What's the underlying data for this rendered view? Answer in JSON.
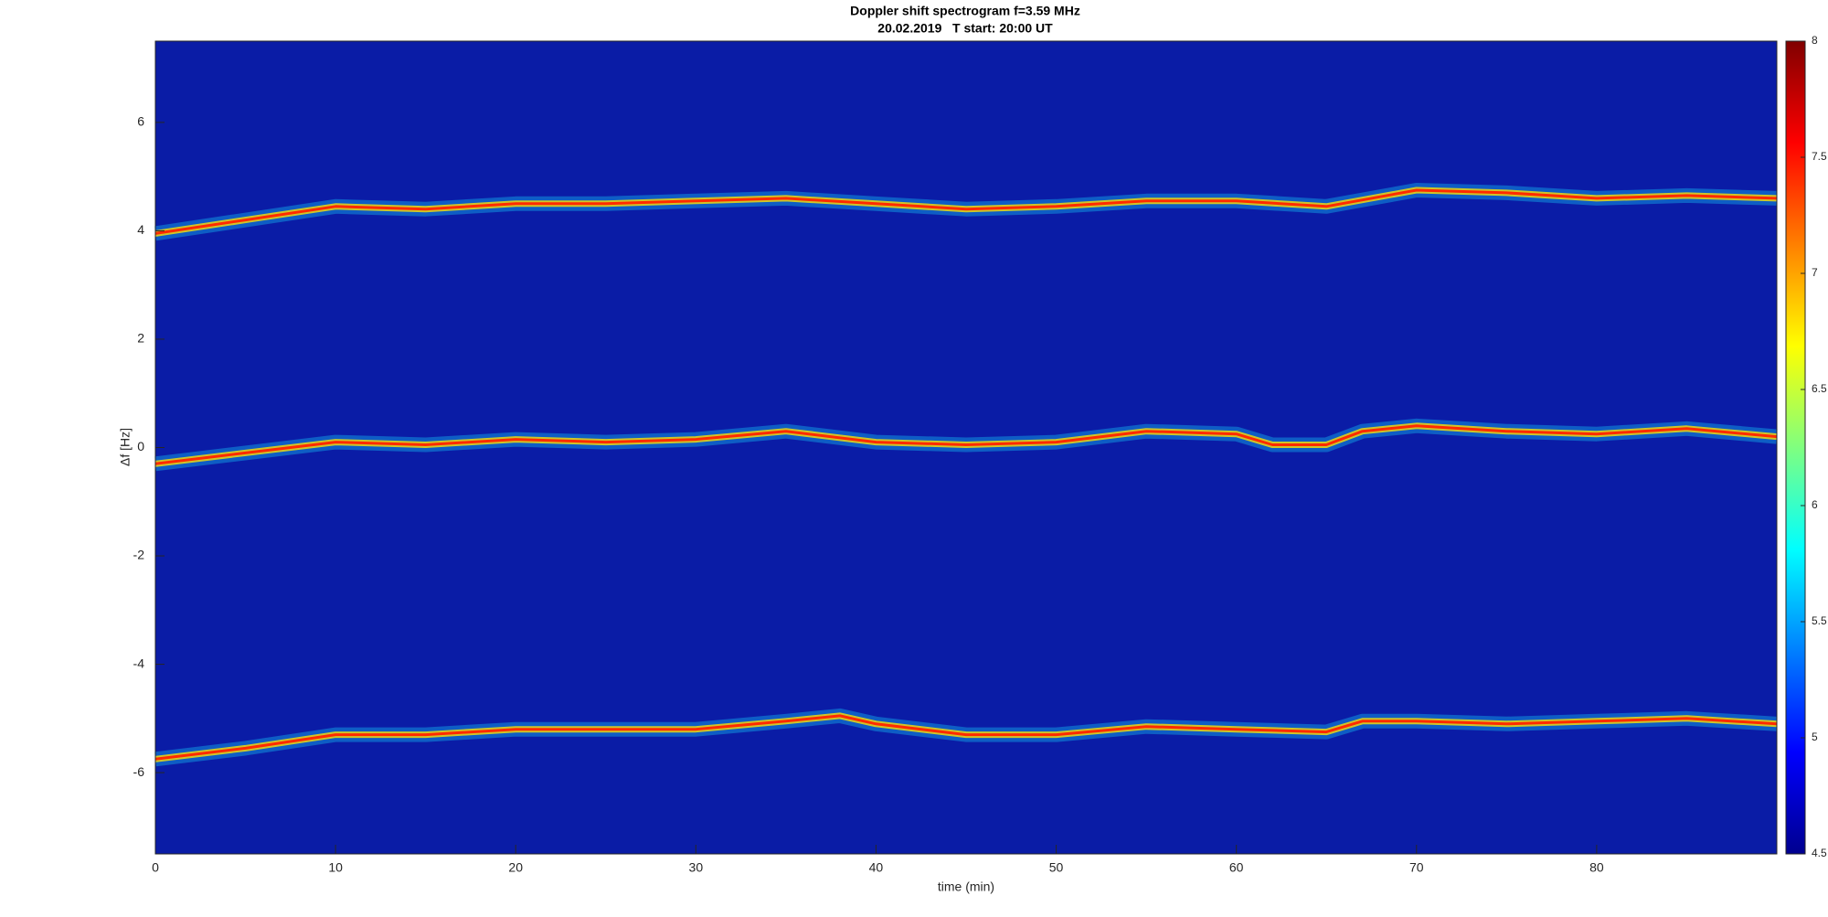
{
  "chart_data": {
    "type": "spectrogram",
    "title": [
      "Doppler shift spectrogram f=3.59 MHz",
      "20.02.2019   T start: 20:00 UT"
    ],
    "xlabel": "time (min)",
    "ylabel": "Δf [Hz]",
    "xlim": [
      0,
      90
    ],
    "xticks": [
      0,
      10,
      20,
      30,
      40,
      50,
      60,
      70,
      80
    ],
    "ylim": [
      -7.5,
      7.5
    ],
    "yticks": [
      -6,
      -4,
      -2,
      0,
      2,
      4,
      6
    ],
    "background_color": "#0a1ca6",
    "colormap": "jet",
    "clim": [
      4.5,
      8
    ],
    "cticks": [
      4.5,
      5,
      5.5,
      6,
      6.5,
      7,
      7.5,
      8
    ],
    "series": [
      {
        "color": "#ff2a00",
        "x": [
          0,
          5,
          10,
          15,
          20,
          25,
          30,
          35,
          40,
          45,
          50,
          55,
          60,
          65,
          70,
          75,
          80,
          85,
          90
        ],
        "values": [
          3.95,
          4.2,
          4.45,
          4.4,
          4.5,
          4.5,
          4.55,
          4.6,
          4.5,
          4.4,
          4.45,
          4.55,
          4.55,
          4.45,
          4.75,
          4.7,
          4.6,
          4.65,
          4.6
        ]
      },
      {
        "color": "#ff2a00",
        "x": [
          0,
          5,
          10,
          15,
          20,
          25,
          30,
          35,
          40,
          45,
          50,
          55,
          60,
          62,
          65,
          67,
          70,
          75,
          80,
          85,
          90
        ],
        "values": [
          -0.3,
          -0.1,
          0.1,
          0.05,
          0.15,
          0.1,
          0.15,
          0.3,
          0.1,
          0.05,
          0.1,
          0.3,
          0.25,
          0.05,
          0.05,
          0.3,
          0.4,
          0.3,
          0.25,
          0.35,
          0.2
        ]
      },
      {
        "color": "#ff2a00",
        "x": [
          0,
          5,
          10,
          15,
          20,
          25,
          30,
          35,
          38,
          40,
          45,
          50,
          55,
          60,
          65,
          67,
          70,
          75,
          80,
          85,
          90
        ],
        "values": [
          -5.75,
          -5.55,
          -5.3,
          -5.3,
          -5.2,
          -5.2,
          -5.2,
          -5.05,
          -4.95,
          -5.1,
          -5.3,
          -5.3,
          -5.15,
          -5.2,
          -5.25,
          -5.05,
          -5.05,
          -5.1,
          -5.05,
          -5.0,
          -5.1
        ]
      }
    ]
  }
}
